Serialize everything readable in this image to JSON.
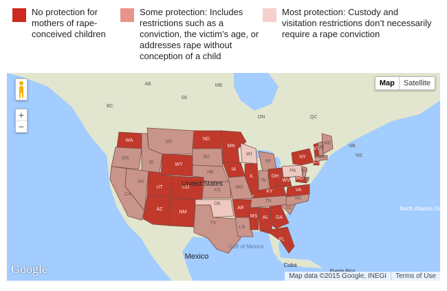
{
  "legend": [
    {
      "text": "No protection for mothers of rape-conceived children",
      "color": "#cc2a1e"
    },
    {
      "text": "Some protection: Includes restrictions such as a conviction, the victim’s age, or addresses rape without conception of a child",
      "color": "#e8948c"
    },
    {
      "text": "Most protection: Custody and visitation restrictions don’t necessarily require a rape conviction",
      "color": "#f6cfcc"
    }
  ],
  "colors": {
    "no_protection": "#c0392b",
    "some_protection": "#c9948a",
    "most_protection": "#eec9c2",
    "land": "#e3e6cf",
    "water": "#a3ccff"
  },
  "map_type": {
    "map_label": "Map",
    "satellite_label": "Satellite"
  },
  "zoom": {
    "in": "+",
    "out": "−"
  },
  "logo": "Google",
  "attribution": {
    "data": "Map data ©2015 Google, INEGI",
    "terms": "Terms of Use"
  },
  "region_labels": {
    "AB": "AB",
    "SK": "SK",
    "MB": "MB",
    "ON": "ON",
    "QC": "QC",
    "BC": "BC",
    "NB": "NB",
    "NS": "NS",
    "united_states": "United States",
    "mexico": "Mexico",
    "gulf": "Gulf of Mexico",
    "cuba": "Cuba",
    "puerto_rico": "Puerto Rico",
    "atlantic": "North Atlantic Ocean"
  },
  "states": [
    {
      "code": "WA",
      "level": "no"
    },
    {
      "code": "OR",
      "level": "some"
    },
    {
      "code": "CA",
      "level": "some"
    },
    {
      "code": "NV",
      "level": "some"
    },
    {
      "code": "ID",
      "level": "some"
    },
    {
      "code": "MT",
      "level": "some"
    },
    {
      "code": "WY",
      "level": "no"
    },
    {
      "code": "UT",
      "level": "no"
    },
    {
      "code": "AZ",
      "level": "no"
    },
    {
      "code": "NM",
      "level": "no"
    },
    {
      "code": "CO",
      "level": "no"
    },
    {
      "code": "ND",
      "level": "no"
    },
    {
      "code": "SD",
      "level": "some"
    },
    {
      "code": "NE",
      "level": "some"
    },
    {
      "code": "KS",
      "level": "some"
    },
    {
      "code": "OK",
      "level": "most"
    },
    {
      "code": "TX",
      "level": "some"
    },
    {
      "code": "MN",
      "level": "no"
    },
    {
      "code": "IA",
      "level": "no"
    },
    {
      "code": "MO",
      "level": "some"
    },
    {
      "code": "AR",
      "level": "no"
    },
    {
      "code": "LA",
      "level": "some"
    },
    {
      "code": "WI",
      "level": "most"
    },
    {
      "code": "IL",
      "level": "no"
    },
    {
      "code": "MI",
      "level": "some"
    },
    {
      "code": "IN",
      "level": "some"
    },
    {
      "code": "OH",
      "level": "no"
    },
    {
      "code": "KY",
      "level": "no"
    },
    {
      "code": "TN",
      "level": "some"
    },
    {
      "code": "MS",
      "level": "no"
    },
    {
      "code": "AL",
      "level": "no"
    },
    {
      "code": "GA",
      "level": "no"
    },
    {
      "code": "FL",
      "level": "no"
    },
    {
      "code": "SC",
      "level": "some"
    },
    {
      "code": "NC",
      "level": "some"
    },
    {
      "code": "VA",
      "level": "no"
    },
    {
      "code": "WV",
      "level": "no"
    },
    {
      "code": "PA",
      "level": "most"
    },
    {
      "code": "NY",
      "level": "no"
    },
    {
      "code": "VT",
      "level": "no"
    },
    {
      "code": "NH",
      "level": "some"
    },
    {
      "code": "ME",
      "level": "some"
    },
    {
      "code": "MA",
      "level": "some"
    },
    {
      "code": "CT",
      "level": "no"
    },
    {
      "code": "NJ",
      "level": "some"
    },
    {
      "code": "DE",
      "level": "some"
    },
    {
      "code": "MD",
      "level": "no"
    }
  ]
}
